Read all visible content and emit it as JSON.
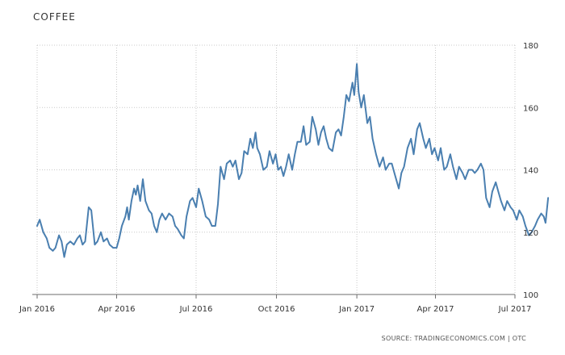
{
  "chart_data": {
    "type": "line",
    "title": "COFFEE",
    "source": "SOURCE: TRADINGECONOMICS.COM | OTC",
    "xlabel": "",
    "ylabel": "",
    "ylim": [
      100,
      180
    ],
    "y_ticks": [
      100,
      120,
      140,
      160,
      180
    ],
    "x_ticks": [
      "Jan 2016",
      "Apr 2016",
      "Jul 2016",
      "Oct 2016",
      "Jan 2017",
      "Apr 2017",
      "Jul 2017"
    ],
    "grid": true,
    "colors": {
      "line": "#4a7fb0",
      "grid": "#c9c9c9",
      "axis": "#6e6e6e"
    },
    "series": [
      {
        "values": [
          [
            "2016-01-01",
            122
          ],
          [
            "2016-01-04",
            124
          ],
          [
            "2016-01-08",
            120
          ],
          [
            "2016-01-12",
            118
          ],
          [
            "2016-01-15",
            115
          ],
          [
            "2016-01-19",
            114
          ],
          [
            "2016-01-22",
            115
          ],
          [
            "2016-01-26",
            119
          ],
          [
            "2016-01-29",
            117
          ],
          [
            "2016-02-01",
            112
          ],
          [
            "2016-02-04",
            116
          ],
          [
            "2016-02-08",
            117
          ],
          [
            "2016-02-12",
            116
          ],
          [
            "2016-02-16",
            118
          ],
          [
            "2016-02-19",
            119
          ],
          [
            "2016-02-22",
            116
          ],
          [
            "2016-02-25",
            117
          ],
          [
            "2016-02-29",
            128
          ],
          [
            "2016-03-03",
            127
          ],
          [
            "2016-03-07",
            116
          ],
          [
            "2016-03-10",
            117
          ],
          [
            "2016-03-14",
            120
          ],
          [
            "2016-03-17",
            117
          ],
          [
            "2016-03-21",
            118
          ],
          [
            "2016-03-24",
            116
          ],
          [
            "2016-03-28",
            115
          ],
          [
            "2016-04-01",
            115
          ],
          [
            "2016-04-04",
            118
          ],
          [
            "2016-04-07",
            122
          ],
          [
            "2016-04-11",
            125
          ],
          [
            "2016-04-13",
            128
          ],
          [
            "2016-04-15",
            124
          ],
          [
            "2016-04-18",
            130
          ],
          [
            "2016-04-21",
            134
          ],
          [
            "2016-04-23",
            132
          ],
          [
            "2016-04-25",
            135
          ],
          [
            "2016-04-28",
            130
          ],
          [
            "2016-05-01",
            137
          ],
          [
            "2016-05-04",
            130
          ],
          [
            "2016-05-08",
            127
          ],
          [
            "2016-05-11",
            126
          ],
          [
            "2016-05-14",
            122
          ],
          [
            "2016-05-17",
            120
          ],
          [
            "2016-05-20",
            124
          ],
          [
            "2016-05-23",
            126
          ],
          [
            "2016-05-27",
            124
          ],
          [
            "2016-05-31",
            126
          ],
          [
            "2016-06-04",
            125
          ],
          [
            "2016-06-07",
            122
          ],
          [
            "2016-06-10",
            121
          ],
          [
            "2016-06-14",
            119
          ],
          [
            "2016-06-17",
            118
          ],
          [
            "2016-06-20",
            125
          ],
          [
            "2016-06-24",
            130
          ],
          [
            "2016-06-27",
            131
          ],
          [
            "2016-07-01",
            128
          ],
          [
            "2016-07-04",
            134
          ],
          [
            "2016-07-08",
            130
          ],
          [
            "2016-07-12",
            125
          ],
          [
            "2016-07-16",
            124
          ],
          [
            "2016-07-19",
            122
          ],
          [
            "2016-07-23",
            122
          ],
          [
            "2016-07-26",
            129
          ],
          [
            "2016-07-29",
            141
          ],
          [
            "2016-08-02",
            137
          ],
          [
            "2016-08-05",
            142
          ],
          [
            "2016-08-09",
            143
          ],
          [
            "2016-08-12",
            141
          ],
          [
            "2016-08-15",
            143
          ],
          [
            "2016-08-19",
            137
          ],
          [
            "2016-08-22",
            139
          ],
          [
            "2016-08-25",
            146
          ],
          [
            "2016-08-29",
            145
          ],
          [
            "2016-09-01",
            150
          ],
          [
            "2016-09-04",
            147
          ],
          [
            "2016-09-07",
            152
          ],
          [
            "2016-09-09",
            147
          ],
          [
            "2016-09-12",
            145
          ],
          [
            "2016-09-16",
            140
          ],
          [
            "2016-09-20",
            141
          ],
          [
            "2016-09-23",
            146
          ],
          [
            "2016-09-27",
            142
          ],
          [
            "2016-09-30",
            145
          ],
          [
            "2016-10-03",
            140
          ],
          [
            "2016-10-06",
            141
          ],
          [
            "2016-10-09",
            138
          ],
          [
            "2016-10-12",
            141
          ],
          [
            "2016-10-15",
            145
          ],
          [
            "2016-10-19",
            140
          ],
          [
            "2016-10-22",
            145
          ],
          [
            "2016-10-25",
            149
          ],
          [
            "2016-10-29",
            149
          ],
          [
            "2016-11-01",
            154
          ],
          [
            "2016-11-04",
            148
          ],
          [
            "2016-11-08",
            149
          ],
          [
            "2016-11-11",
            157
          ],
          [
            "2016-11-15",
            153
          ],
          [
            "2016-11-18",
            148
          ],
          [
            "2016-11-21",
            152
          ],
          [
            "2016-11-24",
            154
          ],
          [
            "2016-11-27",
            150
          ],
          [
            "2016-11-30",
            147
          ],
          [
            "2016-12-04",
            146
          ],
          [
            "2016-12-08",
            152
          ],
          [
            "2016-12-11",
            153
          ],
          [
            "2016-12-14",
            151
          ],
          [
            "2016-12-17",
            157
          ],
          [
            "2016-12-20",
            164
          ],
          [
            "2016-12-23",
            162
          ],
          [
            "2016-12-27",
            168
          ],
          [
            "2016-12-29",
            164
          ],
          [
            "2017-01-01",
            174
          ],
          [
            "2017-01-03",
            165
          ],
          [
            "2017-01-06",
            160
          ],
          [
            "2017-01-09",
            164
          ],
          [
            "2017-01-13",
            155
          ],
          [
            "2017-01-16",
            157
          ],
          [
            "2017-01-19",
            150
          ],
          [
            "2017-01-23",
            145
          ],
          [
            "2017-01-27",
            141
          ],
          [
            "2017-01-31",
            144
          ],
          [
            "2017-02-03",
            140
          ],
          [
            "2017-02-07",
            142
          ],
          [
            "2017-02-10",
            142
          ],
          [
            "2017-02-14",
            138
          ],
          [
            "2017-02-18",
            134
          ],
          [
            "2017-02-21",
            139
          ],
          [
            "2017-02-24",
            141
          ],
          [
            "2017-02-28",
            147
          ],
          [
            "2017-03-04",
            150
          ],
          [
            "2017-03-07",
            145
          ],
          [
            "2017-03-11",
            153
          ],
          [
            "2017-03-14",
            155
          ],
          [
            "2017-03-18",
            150
          ],
          [
            "2017-03-21",
            147
          ],
          [
            "2017-03-25",
            150
          ],
          [
            "2017-03-28",
            145
          ],
          [
            "2017-03-31",
            147
          ],
          [
            "2017-04-04",
            143
          ],
          [
            "2017-04-07",
            147
          ],
          [
            "2017-04-11",
            140
          ],
          [
            "2017-04-14",
            141
          ],
          [
            "2017-04-18",
            145
          ],
          [
            "2017-04-21",
            141
          ],
          [
            "2017-04-25",
            137
          ],
          [
            "2017-04-28",
            141
          ],
          [
            "2017-05-02",
            139
          ],
          [
            "2017-05-05",
            137
          ],
          [
            "2017-05-09",
            140
          ],
          [
            "2017-05-13",
            140
          ],
          [
            "2017-05-16",
            139
          ],
          [
            "2017-05-19",
            140
          ],
          [
            "2017-05-23",
            142
          ],
          [
            "2017-05-26",
            140
          ],
          [
            "2017-05-29",
            131
          ],
          [
            "2017-06-02",
            128
          ],
          [
            "2017-06-05",
            133
          ],
          [
            "2017-06-09",
            136
          ],
          [
            "2017-06-12",
            133
          ],
          [
            "2017-06-15",
            130
          ],
          [
            "2017-06-19",
            127
          ],
          [
            "2017-06-22",
            130
          ],
          [
            "2017-06-26",
            128
          ],
          [
            "2017-06-29",
            127
          ],
          [
            "2017-07-03",
            124
          ],
          [
            "2017-07-06",
            127
          ],
          [
            "2017-07-10",
            125
          ],
          [
            "2017-07-13",
            122
          ],
          [
            "2017-07-17",
            119
          ],
          [
            "2017-07-20",
            120
          ],
          [
            "2017-07-24",
            122
          ],
          [
            "2017-07-27",
            124
          ],
          [
            "2017-07-31",
            126
          ],
          [
            "2017-08-03",
            125
          ],
          [
            "2017-08-05",
            123
          ],
          [
            "2017-08-08",
            131
          ]
        ]
      }
    ]
  }
}
